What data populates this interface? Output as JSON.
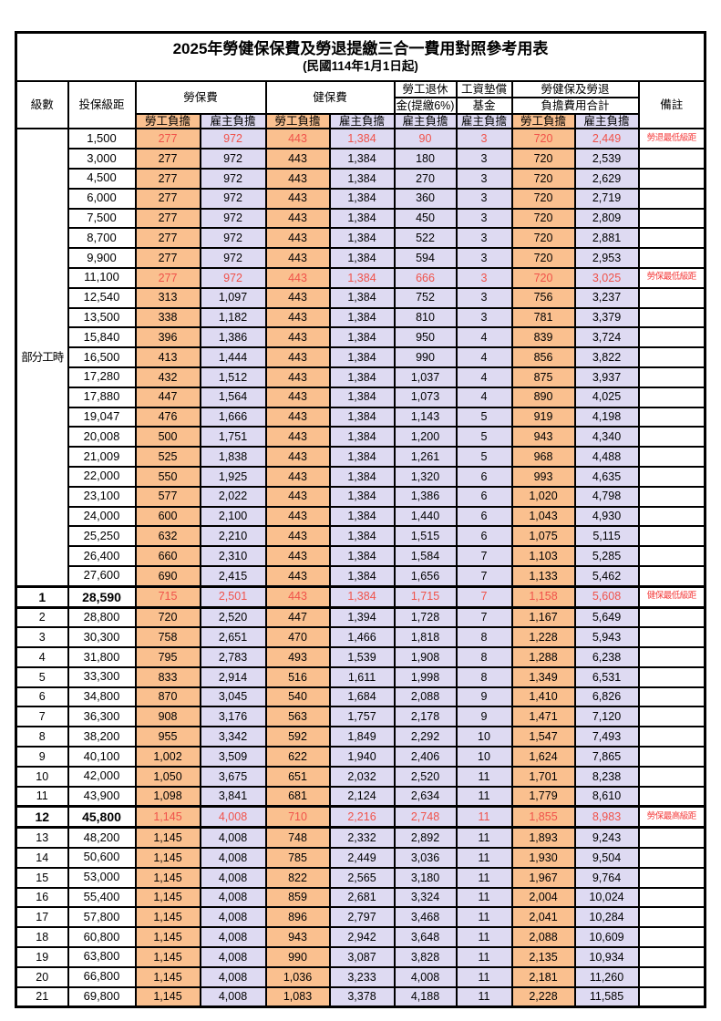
{
  "title": "2025年勞健保保費及勞退提繳三合一費用對照參考用表",
  "subtitle": "(民國114年1月1日起)",
  "colors": {
    "employee_fill": "#FAC08F",
    "employer_fill": "#DEDAF2",
    "highlight_value_text": "#F0524A",
    "remark_text": "#F43B3B",
    "border": "#000000"
  },
  "header": {
    "level": "級數",
    "bracket": "投保級距",
    "labor_fee": "勞保費",
    "health_fee": "健保費",
    "pension_top": "勞工退休",
    "pension_bottom": "金(提繳6%)",
    "wage_fund_top": "工資墊償",
    "wage_fund_bottom": "基金",
    "total_top": "勞健保及勞退",
    "total_bottom": "負擔費用合計",
    "remark": "備註",
    "employee_share": "勞工負擔",
    "employer_share": "雇主負擔"
  },
  "part_time_label": "部分工時",
  "part_time_rowspan": 23,
  "rows": [
    {
      "level": "",
      "bracket": "1,500",
      "values": [
        "277",
        "972",
        "443",
        "1,384",
        "90",
        "3",
        "720",
        "2,449"
      ],
      "remark": "勞退最低級距",
      "highlight": true,
      "bold": false
    },
    {
      "level": "",
      "bracket": "3,000",
      "values": [
        "277",
        "972",
        "443",
        "1,384",
        "180",
        "3",
        "720",
        "2,539"
      ],
      "remark": "",
      "highlight": false,
      "bold": false
    },
    {
      "level": "",
      "bracket": "4,500",
      "values": [
        "277",
        "972",
        "443",
        "1,384",
        "270",
        "3",
        "720",
        "2,629"
      ],
      "remark": "",
      "highlight": false,
      "bold": false
    },
    {
      "level": "",
      "bracket": "6,000",
      "values": [
        "277",
        "972",
        "443",
        "1,384",
        "360",
        "3",
        "720",
        "2,719"
      ],
      "remark": "",
      "highlight": false,
      "bold": false
    },
    {
      "level": "",
      "bracket": "7,500",
      "values": [
        "277",
        "972",
        "443",
        "1,384",
        "450",
        "3",
        "720",
        "2,809"
      ],
      "remark": "",
      "highlight": false,
      "bold": false
    },
    {
      "level": "",
      "bracket": "8,700",
      "values": [
        "277",
        "972",
        "443",
        "1,384",
        "522",
        "3",
        "720",
        "2,881"
      ],
      "remark": "",
      "highlight": false,
      "bold": false
    },
    {
      "level": "",
      "bracket": "9,900",
      "values": [
        "277",
        "972",
        "443",
        "1,384",
        "594",
        "3",
        "720",
        "2,953"
      ],
      "remark": "",
      "highlight": false,
      "bold": false
    },
    {
      "level": "",
      "bracket": "11,100",
      "values": [
        "277",
        "972",
        "443",
        "1,384",
        "666",
        "3",
        "720",
        "3,025"
      ],
      "remark": "勞保最低級距",
      "highlight": true,
      "bold": false
    },
    {
      "level": "",
      "bracket": "12,540",
      "values": [
        "313",
        "1,097",
        "443",
        "1,384",
        "752",
        "3",
        "756",
        "3,237"
      ],
      "remark": "",
      "highlight": false,
      "bold": false
    },
    {
      "level": "",
      "bracket": "13,500",
      "values": [
        "338",
        "1,182",
        "443",
        "1,384",
        "810",
        "3",
        "781",
        "3,379"
      ],
      "remark": "",
      "highlight": false,
      "bold": false
    },
    {
      "level": "",
      "bracket": "15,840",
      "values": [
        "396",
        "1,386",
        "443",
        "1,384",
        "950",
        "4",
        "839",
        "3,724"
      ],
      "remark": "",
      "highlight": false,
      "bold": false
    },
    {
      "level": "",
      "bracket": "16,500",
      "values": [
        "413",
        "1,444",
        "443",
        "1,384",
        "990",
        "4",
        "856",
        "3,822"
      ],
      "remark": "",
      "highlight": false,
      "bold": false
    },
    {
      "level": "",
      "bracket": "17,280",
      "values": [
        "432",
        "1,512",
        "443",
        "1,384",
        "1,037",
        "4",
        "875",
        "3,937"
      ],
      "remark": "",
      "highlight": false,
      "bold": false
    },
    {
      "level": "",
      "bracket": "17,880",
      "values": [
        "447",
        "1,564",
        "443",
        "1,384",
        "1,073",
        "4",
        "890",
        "4,025"
      ],
      "remark": "",
      "highlight": false,
      "bold": false
    },
    {
      "level": "",
      "bracket": "19,047",
      "values": [
        "476",
        "1,666",
        "443",
        "1,384",
        "1,143",
        "5",
        "919",
        "4,198"
      ],
      "remark": "",
      "highlight": false,
      "bold": false
    },
    {
      "level": "",
      "bracket": "20,008",
      "values": [
        "500",
        "1,751",
        "443",
        "1,384",
        "1,200",
        "5",
        "943",
        "4,340"
      ],
      "remark": "",
      "highlight": false,
      "bold": false
    },
    {
      "level": "",
      "bracket": "21,009",
      "values": [
        "525",
        "1,838",
        "443",
        "1,384",
        "1,261",
        "5",
        "968",
        "4,488"
      ],
      "remark": "",
      "highlight": false,
      "bold": false
    },
    {
      "level": "",
      "bracket": "22,000",
      "values": [
        "550",
        "1,925",
        "443",
        "1,384",
        "1,320",
        "6",
        "993",
        "4,635"
      ],
      "remark": "",
      "highlight": false,
      "bold": false
    },
    {
      "level": "",
      "bracket": "23,100",
      "values": [
        "577",
        "2,022",
        "443",
        "1,384",
        "1,386",
        "6",
        "1,020",
        "4,798"
      ],
      "remark": "",
      "highlight": false,
      "bold": false
    },
    {
      "level": "",
      "bracket": "24,000",
      "values": [
        "600",
        "2,100",
        "443",
        "1,384",
        "1,440",
        "6",
        "1,043",
        "4,930"
      ],
      "remark": "",
      "highlight": false,
      "bold": false
    },
    {
      "level": "",
      "bracket": "25,250",
      "values": [
        "632",
        "2,210",
        "443",
        "1,384",
        "1,515",
        "6",
        "1,075",
        "5,115"
      ],
      "remark": "",
      "highlight": false,
      "bold": false
    },
    {
      "level": "",
      "bracket": "26,400",
      "values": [
        "660",
        "2,310",
        "443",
        "1,384",
        "1,584",
        "7",
        "1,103",
        "5,285"
      ],
      "remark": "",
      "highlight": false,
      "bold": false
    },
    {
      "level": "",
      "bracket": "27,600",
      "values": [
        "690",
        "2,415",
        "443",
        "1,384",
        "1,656",
        "7",
        "1,133",
        "5,462"
      ],
      "remark": "",
      "highlight": false,
      "bold": false
    },
    {
      "level": "1",
      "bracket": "28,590",
      "values": [
        "715",
        "2,501",
        "443",
        "1,384",
        "1,715",
        "7",
        "1,158",
        "5,608"
      ],
      "remark": "健保最低級距",
      "highlight": true,
      "bold": true
    },
    {
      "level": "2",
      "bracket": "28,800",
      "values": [
        "720",
        "2,520",
        "447",
        "1,394",
        "1,728",
        "7",
        "1,167",
        "5,649"
      ],
      "remark": "",
      "highlight": false,
      "bold": false
    },
    {
      "level": "3",
      "bracket": "30,300",
      "values": [
        "758",
        "2,651",
        "470",
        "1,466",
        "1,818",
        "8",
        "1,228",
        "5,943"
      ],
      "remark": "",
      "highlight": false,
      "bold": false
    },
    {
      "level": "4",
      "bracket": "31,800",
      "values": [
        "795",
        "2,783",
        "493",
        "1,539",
        "1,908",
        "8",
        "1,288",
        "6,238"
      ],
      "remark": "",
      "highlight": false,
      "bold": false
    },
    {
      "level": "5",
      "bracket": "33,300",
      "values": [
        "833",
        "2,914",
        "516",
        "1,611",
        "1,998",
        "8",
        "1,349",
        "6,531"
      ],
      "remark": "",
      "highlight": false,
      "bold": false
    },
    {
      "level": "6",
      "bracket": "34,800",
      "values": [
        "870",
        "3,045",
        "540",
        "1,684",
        "2,088",
        "9",
        "1,410",
        "6,826"
      ],
      "remark": "",
      "highlight": false,
      "bold": false
    },
    {
      "level": "7",
      "bracket": "36,300",
      "values": [
        "908",
        "3,176",
        "563",
        "1,757",
        "2,178",
        "9",
        "1,471",
        "7,120"
      ],
      "remark": "",
      "highlight": false,
      "bold": false
    },
    {
      "level": "8",
      "bracket": "38,200",
      "values": [
        "955",
        "3,342",
        "592",
        "1,849",
        "2,292",
        "10",
        "1,547",
        "7,493"
      ],
      "remark": "",
      "highlight": false,
      "bold": false
    },
    {
      "level": "9",
      "bracket": "40,100",
      "values": [
        "1,002",
        "3,509",
        "622",
        "1,940",
        "2,406",
        "10",
        "1,624",
        "7,865"
      ],
      "remark": "",
      "highlight": false,
      "bold": false
    },
    {
      "level": "10",
      "bracket": "42,000",
      "values": [
        "1,050",
        "3,675",
        "651",
        "2,032",
        "2,520",
        "11",
        "1,701",
        "8,238"
      ],
      "remark": "",
      "highlight": false,
      "bold": false
    },
    {
      "level": "11",
      "bracket": "43,900",
      "values": [
        "1,098",
        "3,841",
        "681",
        "2,124",
        "2,634",
        "11",
        "1,779",
        "8,610"
      ],
      "remark": "",
      "highlight": false,
      "bold": false
    },
    {
      "level": "12",
      "bracket": "45,800",
      "values": [
        "1,145",
        "4,008",
        "710",
        "2,216",
        "2,748",
        "11",
        "1,855",
        "8,983"
      ],
      "remark": "勞保最高級距",
      "highlight": true,
      "bold": true
    },
    {
      "level": "13",
      "bracket": "48,200",
      "values": [
        "1,145",
        "4,008",
        "748",
        "2,332",
        "2,892",
        "11",
        "1,893",
        "9,243"
      ],
      "remark": "",
      "highlight": false,
      "bold": false
    },
    {
      "level": "14",
      "bracket": "50,600",
      "values": [
        "1,145",
        "4,008",
        "785",
        "2,449",
        "3,036",
        "11",
        "1,930",
        "9,504"
      ],
      "remark": "",
      "highlight": false,
      "bold": false
    },
    {
      "level": "15",
      "bracket": "53,000",
      "values": [
        "1,145",
        "4,008",
        "822",
        "2,565",
        "3,180",
        "11",
        "1,967",
        "9,764"
      ],
      "remark": "",
      "highlight": false,
      "bold": false
    },
    {
      "level": "16",
      "bracket": "55,400",
      "values": [
        "1,145",
        "4,008",
        "859",
        "2,681",
        "3,324",
        "11",
        "2,004",
        "10,024"
      ],
      "remark": "",
      "highlight": false,
      "bold": false
    },
    {
      "level": "17",
      "bracket": "57,800",
      "values": [
        "1,145",
        "4,008",
        "896",
        "2,797",
        "3,468",
        "11",
        "2,041",
        "10,284"
      ],
      "remark": "",
      "highlight": false,
      "bold": false
    },
    {
      "level": "18",
      "bracket": "60,800",
      "values": [
        "1,145",
        "4,008",
        "943",
        "2,942",
        "3,648",
        "11",
        "2,088",
        "10,609"
      ],
      "remark": "",
      "highlight": false,
      "bold": false
    },
    {
      "level": "19",
      "bracket": "63,800",
      "values": [
        "1,145",
        "4,008",
        "990",
        "3,087",
        "3,828",
        "11",
        "2,135",
        "10,934"
      ],
      "remark": "",
      "highlight": false,
      "bold": false
    },
    {
      "level": "20",
      "bracket": "66,800",
      "values": [
        "1,145",
        "4,008",
        "1,036",
        "3,233",
        "4,008",
        "11",
        "2,181",
        "11,260"
      ],
      "remark": "",
      "highlight": false,
      "bold": false
    },
    {
      "level": "21",
      "bracket": "69,800",
      "values": [
        "1,145",
        "4,008",
        "1,083",
        "3,378",
        "4,188",
        "11",
        "2,228",
        "11,585"
      ],
      "remark": "",
      "highlight": false,
      "bold": false
    }
  ]
}
